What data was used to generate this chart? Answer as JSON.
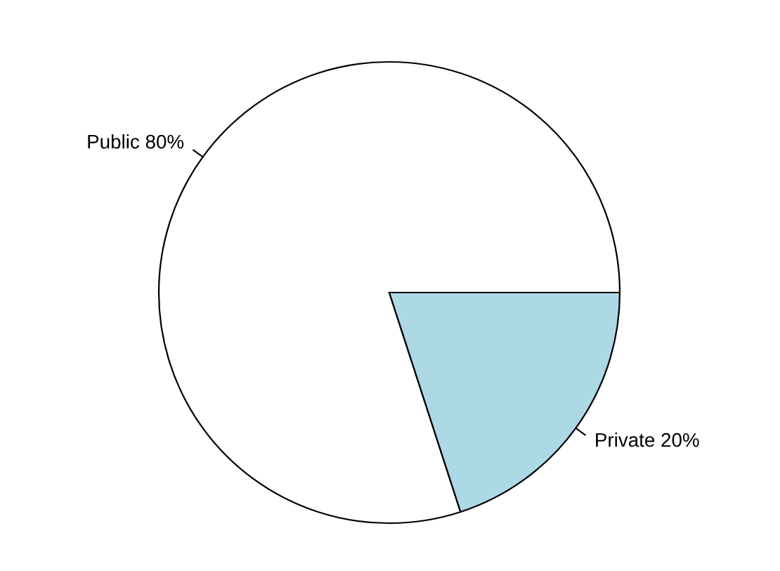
{
  "chart_data": {
    "type": "pie",
    "categories": [
      "Public 80%",
      "Private 20%"
    ],
    "values": [
      80,
      20
    ],
    "colors": [
      "#ffffff",
      "#add8e6"
    ]
  }
}
